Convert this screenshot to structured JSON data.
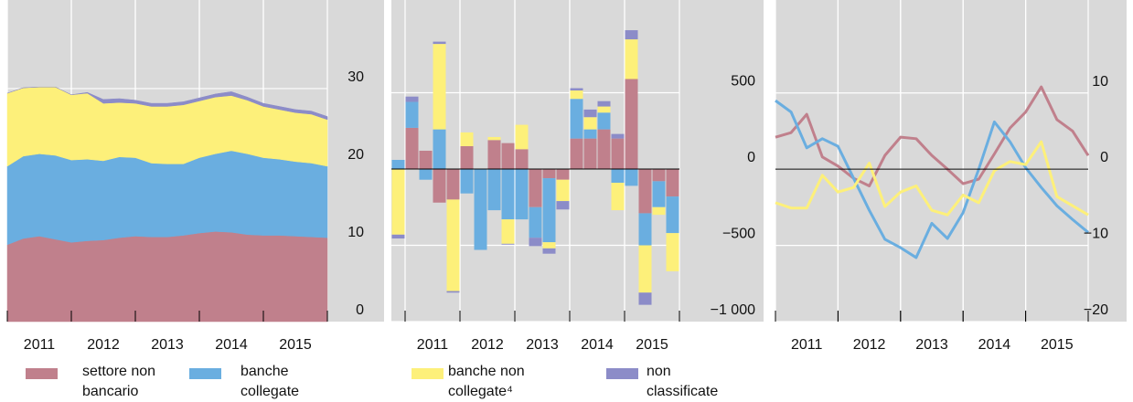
{
  "chart_data": [
    {
      "type": "area",
      "stacked": true,
      "grid": true,
      "categories": [
        "2011",
        null,
        null,
        null,
        "2012",
        null,
        null,
        null,
        "2013",
        null,
        null,
        null,
        "2014",
        null,
        null,
        null,
        "2015",
        null,
        null,
        null,
        null
      ],
      "series": [
        {
          "name": "settore non bancario",
          "color": "#c0808c",
          "values": [
            9.9,
            10.7,
            11.0,
            10.6,
            10.2,
            10.4,
            10.5,
            10.8,
            11.0,
            10.9,
            10.9,
            11.1,
            11.4,
            11.6,
            11.5,
            11.2,
            11.1,
            11.1,
            11.0,
            10.9,
            10.8
          ]
        },
        {
          "name": "banche collegate",
          "color": "#6aaee0",
          "values": [
            10.1,
            10.6,
            10.6,
            10.8,
            10.6,
            10.5,
            10.2,
            10.4,
            10.1,
            9.5,
            9.4,
            9.2,
            9.7,
            10.0,
            10.5,
            10.4,
            10.0,
            9.8,
            9.6,
            9.5,
            9.2
          ]
        },
        {
          "name": "banche non collegate⁴",
          "color": "#fdf07a",
          "values": [
            9.4,
            8.8,
            8.6,
            8.8,
            8.4,
            8.5,
            7.4,
            7.0,
            7.0,
            7.3,
            7.4,
            7.6,
            7.3,
            7.3,
            7.1,
            6.9,
            6.6,
            6.4,
            6.3,
            6.3,
            6.0
          ]
        },
        {
          "name": "non classificate",
          "color": "#8c8cc8",
          "values": [
            0,
            0,
            0,
            0,
            0,
            0.1,
            0.5,
            0.5,
            0.4,
            0.4,
            0.4,
            0.4,
            0.4,
            0.4,
            0.5,
            0.4,
            0.4,
            0.4,
            0.4,
            0.4,
            0.4
          ]
        }
      ],
      "ylim": [
        0,
        41.4
      ],
      "yticks": [
        0,
        10,
        20,
        30
      ]
    },
    {
      "type": "bar",
      "stacked": true,
      "grid": true,
      "zero_line": true,
      "categories": [
        null,
        "2011",
        null,
        null,
        null,
        "2012",
        null,
        null,
        null,
        "2013",
        null,
        null,
        null,
        "2014",
        null,
        null,
        null,
        "2015",
        null,
        null,
        null
      ],
      "series": [
        {
          "color": "#c0808c",
          "values": [
            0,
            270,
            120,
            -220,
            -200,
            150,
            0,
            190,
            170,
            130,
            -250,
            -60,
            -70,
            200,
            200,
            260,
            200,
            590,
            -290,
            -80,
            -180
          ]
        },
        {
          "color": "#6aaee0",
          "values": [
            60,
            170,
            -70,
            260,
            0,
            -160,
            -530,
            -270,
            -330,
            -330,
            -200,
            -420,
            0,
            260,
            60,
            110,
            -90,
            -110,
            -210,
            -170,
            -240
          ]
        },
        {
          "color": "#fdf07a",
          "values": [
            -430,
            0,
            0,
            560,
            -600,
            90,
            0,
            20,
            -160,
            160,
            0,
            -40,
            -140,
            55,
            80,
            40,
            -180,
            260,
            -310,
            -50,
            -250
          ]
        },
        {
          "color": "#8c8cc8",
          "values": [
            -25,
            35,
            0,
            15,
            -10,
            0,
            0,
            0,
            -5,
            0,
            -55,
            -35,
            -55,
            15,
            50,
            35,
            30,
            60,
            -80,
            0,
            0
          ]
        }
      ],
      "ylim": [
        -1000,
        1108
      ],
      "yticks": [
        {
          "value": -1000,
          "label": "−1 000"
        },
        {
          "value": -500,
          "label": "−500"
        },
        0,
        500
      ]
    },
    {
      "type": "line",
      "grid": true,
      "zero_line": true,
      "categories": [
        "2011",
        null,
        null,
        null,
        "2012",
        null,
        null,
        null,
        "2013",
        null,
        null,
        null,
        "2014",
        null,
        null,
        null,
        "2015",
        null,
        null,
        null,
        null
      ],
      "series": [
        {
          "color": "#c0808c",
          "values": [
            4.2,
            4.8,
            7.2,
            1.6,
            0.4,
            -1.2,
            -2.2,
            1.8,
            4.2,
            4.0,
            1.8,
            0,
            -1.9,
            -1.3,
            2.0,
            5.4,
            7.5,
            10.8,
            6.5,
            5.0,
            1.8
          ]
        },
        {
          "color": "#6aaee0",
          "values": [
            9.0,
            7.5,
            2.8,
            4.0,
            3.0,
            -1.2,
            -5.4,
            -9.2,
            -10.3,
            -11.6,
            -7.1,
            -9.1,
            -5.7,
            0,
            6.2,
            3.6,
            0.2,
            -2.4,
            -4.8,
            -6.6,
            -8.3
          ]
        },
        {
          "color": "#fdf07a",
          "values": [
            -4.4,
            -5.1,
            -5.1,
            -0.8,
            -3.0,
            -2.4,
            0.8,
            -4.9,
            -3.0,
            -2.2,
            -5.4,
            -6.0,
            -3.4,
            -4.4,
            -0.2,
            1.0,
            0.6,
            3.6,
            -3.6,
            -4.8,
            -6.0
          ]
        }
      ],
      "ylim": [
        -20,
        22.2
      ],
      "yticks": [
        {
          "value": -20,
          "label": "−20"
        },
        {
          "value": -10,
          "label": "−10"
        },
        0,
        10
      ]
    }
  ]
}
